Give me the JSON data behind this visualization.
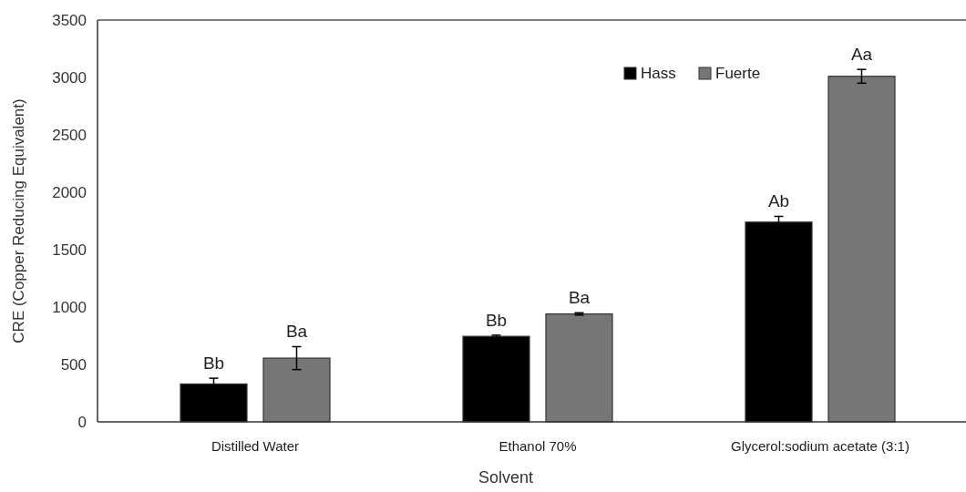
{
  "chart_data": {
    "type": "bar",
    "xlabel": "Solvent",
    "ylabel": "CRE (Copper Reducing Equivalent)",
    "categories": [
      "Distilled Water",
      "Ethanol 70%",
      "Glycerol:sodium acetate (3:1)"
    ],
    "series": [
      {
        "name": "Hass",
        "color": "#000000",
        "values": [
          330,
          745,
          1740
        ],
        "errors": [
          50,
          10,
          50
        ],
        "value_labels": [
          "Bb",
          "Bb",
          "Ab"
        ]
      },
      {
        "name": "Fuerte",
        "color": "#767676",
        "values": [
          555,
          940,
          3010
        ],
        "errors": [
          100,
          10,
          60
        ],
        "value_labels": [
          "Ba",
          "Ba",
          "Aa"
        ]
      }
    ],
    "ylim": [
      0,
      3500
    ],
    "yticks": [
      0,
      500,
      1000,
      1500,
      2000,
      2500,
      3000,
      3500
    ],
    "grid": false,
    "legend": "top"
  }
}
